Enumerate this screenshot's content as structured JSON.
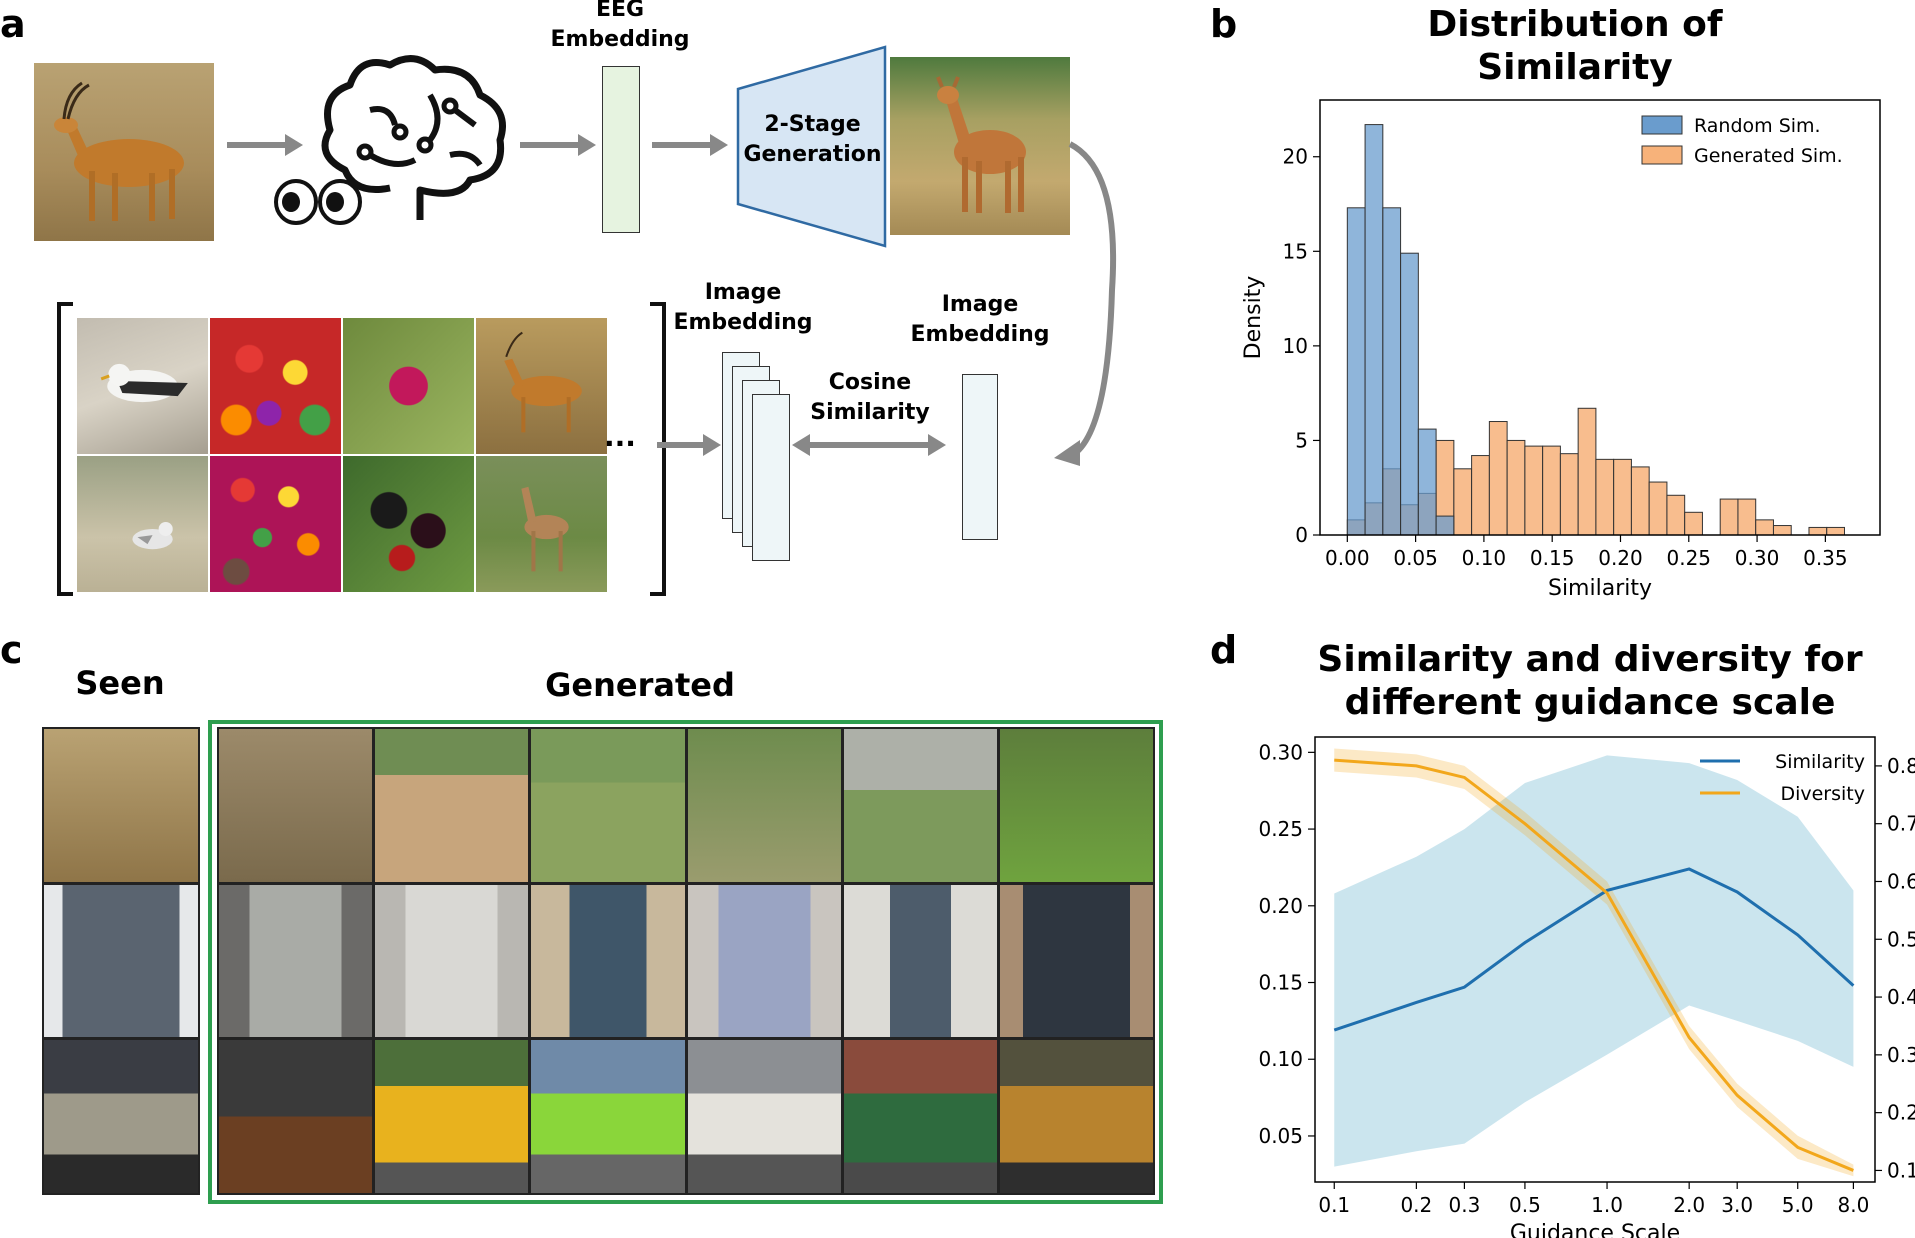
{
  "panels": {
    "a": "a",
    "b": "b",
    "c": "c",
    "d": "d"
  },
  "panel_a": {
    "eeg_embedding_label": "EEG\nEmbedding",
    "generation_label": "2-Stage\nGeneration",
    "image_embedding_label_left": "Image\nEmbedding",
    "image_embedding_label_right": "Image\nEmbedding",
    "cosine_similarity_label": "Cosine\nSimilarity",
    "ellipsis": "..."
  },
  "panel_c": {
    "seen_label": "Seen",
    "generated_label": "Generated"
  },
  "colors": {
    "blue_hist": "#6a9ccd",
    "orange_hist": "#f7b27a",
    "similarity_line": "#1f6fae",
    "diversity_line": "#f2a71b",
    "eeg_box": "#e6f3e0",
    "embedding_box": "#eef6f8",
    "generator_fill": "#d7e6f4",
    "green_frame": "#2e9e4f"
  },
  "chart_data": [
    {
      "type": "bar",
      "title": "Distribution of\nSimilarity",
      "xlabel": "Similarity",
      "ylabel": "Density",
      "xlim": [
        -0.02,
        0.39
      ],
      "ylim": [
        0,
        23
      ],
      "xticks": [
        "0.00",
        "0.05",
        "0.10",
        "0.15",
        "0.20",
        "0.25",
        "0.30",
        "0.35"
      ],
      "yticks": [
        "0",
        "5",
        "10",
        "15",
        "20"
      ],
      "bin_width": 0.013,
      "series": [
        {
          "name": "Random Sim.",
          "bin_start": [
            0.0,
            0.013,
            0.026,
            0.039,
            0.052,
            0.065
          ],
          "values": [
            17.3,
            21.7,
            17.3,
            14.9,
            5.6,
            1.0
          ]
        },
        {
          "name": "Generated Sim.",
          "bin_start": [
            0.0,
            0.013,
            0.026,
            0.039,
            0.052,
            0.065,
            0.078,
            0.091,
            0.104,
            0.117,
            0.13,
            0.143,
            0.156,
            0.169,
            0.182,
            0.195,
            0.208,
            0.221,
            0.234,
            0.247,
            0.26,
            0.273,
            0.286,
            0.299,
            0.312,
            0.325,
            0.338,
            0.351,
            0.364
          ],
          "values": [
            0.8,
            1.7,
            3.5,
            1.6,
            2.2,
            5.0,
            3.5,
            4.2,
            6.0,
            5.0,
            4.7,
            4.7,
            4.3,
            6.7,
            4.0,
            4.0,
            3.6,
            2.8,
            2.1,
            1.2,
            0.0,
            1.9,
            1.9,
            0.8,
            0.5,
            0.0,
            0.4,
            0.4,
            0.0
          ]
        }
      ]
    },
    {
      "type": "line",
      "title": "Similarity and diversity for\ndifferent guidance scale",
      "xlabel": "Guidance Scale",
      "xscale": "log",
      "x": [
        0.1,
        0.2,
        0.3,
        0.5,
        1.0,
        2.0,
        3.0,
        5.0,
        8.0
      ],
      "xticks": [
        "0.1",
        "0.2",
        "0.3",
        "0.5",
        "1.0",
        "2.0",
        "3.0",
        "5.0",
        "8.0"
      ],
      "left_ylim": [
        0.02,
        0.31
      ],
      "left_yticks": [
        "0.05",
        "0.10",
        "0.15",
        "0.20",
        "0.25",
        "0.30"
      ],
      "right_ylim": [
        0.08,
        0.85
      ],
      "right_yticks": [
        "0.1",
        "0.2",
        "0.3",
        "0.4",
        "0.5",
        "0.6",
        "0.7",
        "0.8"
      ],
      "series": [
        {
          "name": "Similarity",
          "axis": "left",
          "values": [
            0.119,
            0.137,
            0.147,
            0.176,
            0.21,
            0.224,
            0.209,
            0.181,
            0.148
          ],
          "band_low": [
            0.03,
            0.04,
            0.045,
            0.072,
            0.103,
            0.135,
            0.125,
            0.112,
            0.095
          ],
          "band_high": [
            0.208,
            0.232,
            0.25,
            0.28,
            0.298,
            0.293,
            0.282,
            0.258,
            0.21
          ]
        },
        {
          "name": "Diversity",
          "axis": "right",
          "values": [
            0.81,
            0.8,
            0.78,
            0.7,
            0.58,
            0.33,
            0.23,
            0.14,
            0.1
          ],
          "band_low": [
            0.79,
            0.78,
            0.76,
            0.68,
            0.56,
            0.31,
            0.21,
            0.12,
            0.09
          ],
          "band_high": [
            0.83,
            0.82,
            0.8,
            0.72,
            0.6,
            0.35,
            0.25,
            0.16,
            0.11
          ]
        }
      ]
    }
  ]
}
